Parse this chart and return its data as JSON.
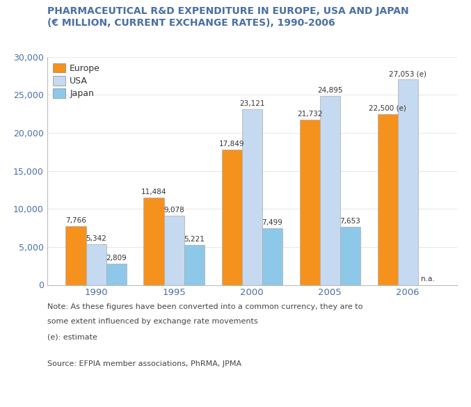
{
  "title_line1": "PHARMACEUTICAL R&D EXPENDITURE IN EUROPE, USA AND JAPAN",
  "title_line2": "(€ MILLION, CURRENT EXCHANGE RATES), 1990-2006",
  "title_color": "#4a6fa5",
  "categories": [
    "1990",
    "1995",
    "2000",
    "2005",
    "2006"
  ],
  "europe": [
    7766,
    11484,
    17849,
    21732,
    22500
  ],
  "usa": [
    5342,
    9078,
    23121,
    24895,
    27053
  ],
  "japan": [
    2809,
    5221,
    7499,
    7653,
    0
  ],
  "europe_labels": [
    "7,766",
    "11,484",
    "17,849",
    "21,732",
    "22,500 (e)"
  ],
  "usa_labels": [
    "5,342",
    "9,078",
    "23,121",
    "24,895",
    "27,053 (e)"
  ],
  "japan_labels": [
    "2,809",
    "5,221",
    "7,499",
    "7,653",
    "n.a."
  ],
  "europe_color": "#f5921e",
  "usa_color": "#c5d9f0",
  "japan_color": "#8ec8e8",
  "bar_edge_color": "#aaaaaa",
  "ylim": [
    0,
    30000
  ],
  "yticks": [
    0,
    5000,
    10000,
    15000,
    20000,
    25000,
    30000
  ],
  "note_line1": "Note: As these figures have been converted into a common currency, they are to",
  "note_line2": "some extent influenced by exchange rate movements",
  "note_line3": "(e): estimate",
  "source": "Source: EFPIA member associations, PhRMA, JPMA",
  "legend_europe": "Europe",
  "legend_usa": "USA",
  "legend_japan": "Japan",
  "label_fontsize": 7.5,
  "axis_label_color": "#4a6fa5",
  "note_color": "#444444",
  "bar_width": 0.26,
  "title_fontsize": 10.0
}
